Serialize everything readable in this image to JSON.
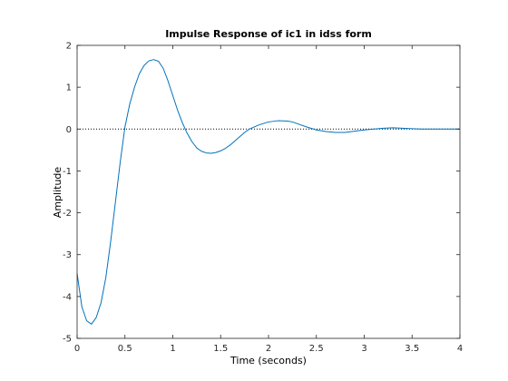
{
  "chart_data": {
    "type": "line",
    "title": "Impulse Response of ic1 in idss form",
    "xlabel": "Time (seconds)",
    "ylabel": "Amplitude",
    "xlim": [
      0,
      4
    ],
    "ylim": [
      -5,
      2
    ],
    "xticks": [
      0,
      0.5,
      1,
      1.5,
      2,
      2.5,
      3,
      3.5,
      4
    ],
    "xtick_labels": [
      "0",
      "0.5",
      "1",
      "1.5",
      "2",
      "2.5",
      "3",
      "3.5",
      "4"
    ],
    "yticks": [
      -5,
      -4,
      -3,
      -2,
      -1,
      0,
      1,
      2
    ],
    "ytick_labels": [
      "-5",
      "-4",
      "-3",
      "-2",
      "-1",
      "0",
      "1",
      "2"
    ],
    "grid": false,
    "reference_line": {
      "y": 0,
      "style": "dotted"
    },
    "series": [
      {
        "color": "#0072BD",
        "x": [
          0,
          0.05,
          0.1,
          0.15,
          0.2,
          0.25,
          0.3,
          0.35,
          0.4,
          0.45,
          0.5,
          0.55,
          0.6,
          0.65,
          0.7,
          0.75,
          0.8,
          0.85,
          0.9,
          0.95,
          1.0,
          1.05,
          1.1,
          1.15,
          1.2,
          1.25,
          1.3,
          1.35,
          1.4,
          1.45,
          1.5,
          1.55,
          1.6,
          1.65,
          1.7,
          1.75,
          1.8,
          1.9,
          2.0,
          2.1,
          2.2,
          2.25,
          2.3,
          2.4,
          2.5,
          2.6,
          2.7,
          2.8,
          2.9,
          3.0,
          3.1,
          3.2,
          3.3,
          3.4,
          3.5,
          3.6,
          3.7,
          3.8,
          3.9,
          4.0
        ],
        "y": [
          -3.45,
          -4.25,
          -4.58,
          -4.66,
          -4.5,
          -4.15,
          -3.55,
          -2.7,
          -1.75,
          -0.8,
          0.05,
          0.6,
          1.0,
          1.32,
          1.52,
          1.63,
          1.66,
          1.62,
          1.45,
          1.15,
          0.8,
          0.45,
          0.15,
          -0.1,
          -0.3,
          -0.45,
          -0.53,
          -0.57,
          -0.58,
          -0.56,
          -0.52,
          -0.46,
          -0.38,
          -0.28,
          -0.18,
          -0.08,
          0.0,
          0.1,
          0.17,
          0.2,
          0.19,
          0.17,
          0.13,
          0.05,
          -0.02,
          -0.06,
          -0.08,
          -0.08,
          -0.05,
          -0.02,
          0.0,
          0.02,
          0.03,
          0.02,
          0.01,
          0.0,
          0.0,
          0.0,
          0.0,
          0.0
        ]
      }
    ]
  }
}
